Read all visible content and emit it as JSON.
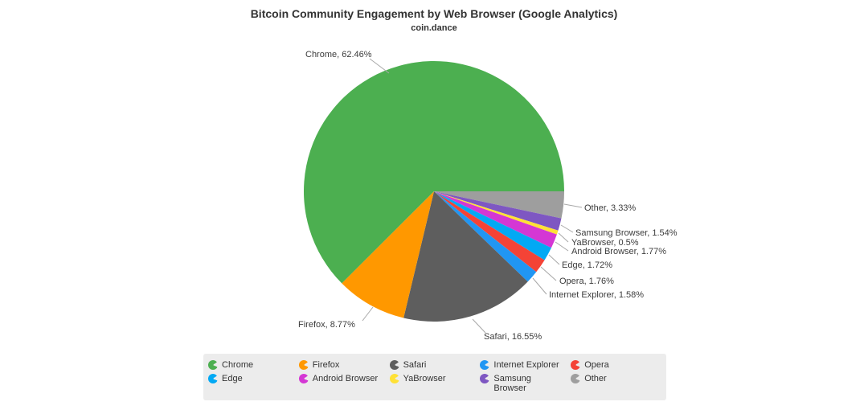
{
  "title": "Bitcoin Community Engagement by Web Browser (Google Analytics)",
  "subtitle": "coin.dance",
  "chart_data": {
    "type": "pie",
    "unit": "%",
    "start_angle_deg": 90,
    "direction": "counterclockwise",
    "legend_position": "bottom",
    "slices": [
      {
        "name": "Chrome",
        "value": 62.46,
        "color": "#4CAF50",
        "label": "Chrome, 62.46%"
      },
      {
        "name": "Firefox",
        "value": 8.77,
        "color": "#FF9800",
        "label": "Firefox, 8.77%"
      },
      {
        "name": "Safari",
        "value": 16.55,
        "color": "#5E5E5E",
        "label": "Safari, 16.55%"
      },
      {
        "name": "Internet Explorer",
        "value": 1.58,
        "color": "#2196F3",
        "label": "Internet Explorer, 1.58%"
      },
      {
        "name": "Opera",
        "value": 1.76,
        "color": "#F44336",
        "label": "Opera, 1.76%"
      },
      {
        "name": "Edge",
        "value": 1.72,
        "color": "#03A9F4",
        "label": "Edge, 1.72%"
      },
      {
        "name": "Android Browser",
        "value": 1.77,
        "color": "#D437D4",
        "label": "Android Browser, 1.77%"
      },
      {
        "name": "YaBrowser",
        "value": 0.5,
        "color": "#FFE135",
        "label": "YaBrowser, 0.5%"
      },
      {
        "name": "Samsung Browser",
        "value": 1.54,
        "color": "#7E57C2",
        "label": "Samsung Browser, 1.54%"
      },
      {
        "name": "Other",
        "value": 3.33,
        "color": "#9E9E9E",
        "label": "Other, 3.33%"
      }
    ]
  }
}
